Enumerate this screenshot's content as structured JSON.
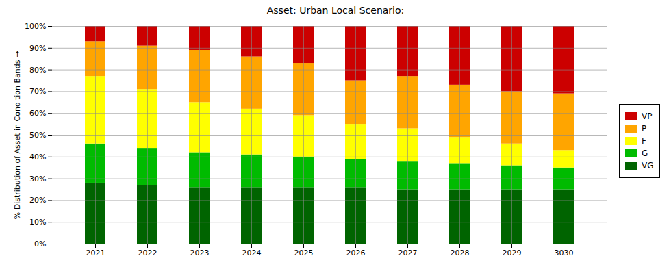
{
  "chart_data": {
    "type": "bar",
    "stacked": true,
    "title": "Asset: Urban Local Scenario:",
    "ylabel": "% Distribution of Asset in Condition Bands",
    "categories": [
      "2021",
      "2022",
      "2023",
      "2024",
      "2025",
      "2026",
      "2027",
      "2028",
      "2029",
      "3030"
    ],
    "series": [
      {
        "name": "VG",
        "color": "#006400",
        "values": [
          28,
          27,
          26,
          26,
          26,
          26,
          25,
          25,
          25,
          25
        ]
      },
      {
        "name": "G",
        "color": "#00bb00",
        "values": [
          18,
          17,
          16,
          15,
          14,
          13,
          13,
          12,
          11,
          10
        ]
      },
      {
        "name": "F",
        "color": "#ffff00",
        "values": [
          31,
          27,
          23,
          21,
          19,
          16,
          15,
          12,
          10,
          8
        ]
      },
      {
        "name": "P",
        "color": "#ffa500",
        "values": [
          16,
          20,
          24,
          24,
          24,
          20,
          24,
          24,
          24,
          26
        ]
      },
      {
        "name": "VP",
        "color": "#cc0000",
        "values": [
          7,
          9,
          11,
          14,
          17,
          25,
          23,
          27,
          30,
          31
        ]
      }
    ],
    "ylim": [
      0,
      100
    ],
    "yticks": [
      {
        "value": 0,
        "label": "0%"
      },
      {
        "value": 10,
        "label": "10%"
      },
      {
        "value": 20,
        "label": "20%"
      },
      {
        "value": 30,
        "label": "30%"
      },
      {
        "value": 40,
        "label": "40%"
      },
      {
        "value": 50,
        "label": "50%"
      },
      {
        "value": 60,
        "label": "60%"
      },
      {
        "value": 70,
        "label": "70%"
      },
      {
        "value": 80,
        "label": "80%"
      },
      {
        "value": 90,
        "label": "90%"
      },
      {
        "value": 100,
        "label": "100%"
      }
    ],
    "grid": true,
    "legend": "right"
  }
}
